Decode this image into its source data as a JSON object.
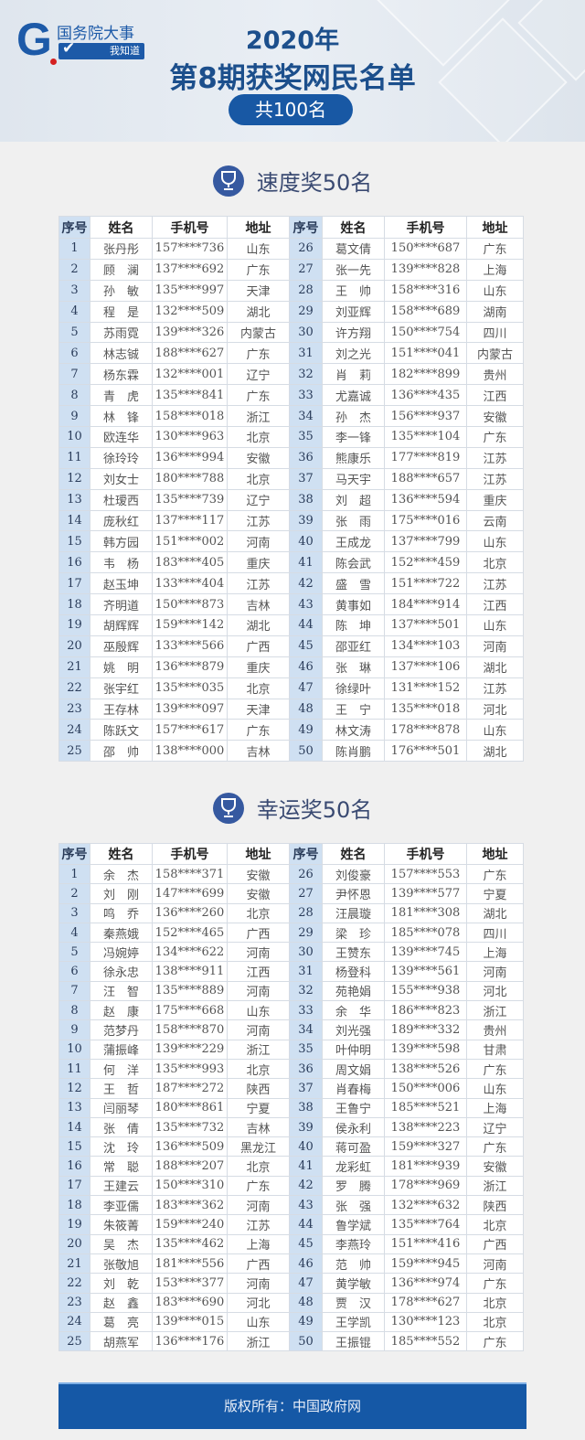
{
  "header": {
    "logo_text": "国务院大事",
    "logo_sub": "我知道",
    "logo_letter": "G",
    "year": "2020年",
    "title": "第8期获奖网民名单",
    "total": "共100名"
  },
  "colors": {
    "primary": "#1558a6",
    "title": "#1c4f8c",
    "index_cell": "#cfe0f2"
  },
  "columns": [
    "序号",
    "姓名",
    "手机号",
    "地址"
  ],
  "speed_award": {
    "title": "速度奖50名",
    "icon": "trophy-icon",
    "rows": [
      [
        "1",
        "张丹彤",
        "157****736",
        "山东"
      ],
      [
        "2",
        "顾　澜",
        "137****692",
        "广东"
      ],
      [
        "3",
        "孙　敏",
        "135****997",
        "天津"
      ],
      [
        "4",
        "程　是",
        "132****509",
        "湖北"
      ],
      [
        "5",
        "苏雨霓",
        "139****326",
        "内蒙古"
      ],
      [
        "6",
        "林志铖",
        "188****627",
        "广东"
      ],
      [
        "7",
        "杨东霖",
        "132****001",
        "辽宁"
      ],
      [
        "8",
        "青　虎",
        "135****841",
        "广东"
      ],
      [
        "9",
        "林　锋",
        "158****018",
        "浙江"
      ],
      [
        "10",
        "欧连华",
        "130****963",
        "北京"
      ],
      [
        "11",
        "徐玲玲",
        "136****994",
        "安徽"
      ],
      [
        "12",
        "刘女士",
        "180****788",
        "北京"
      ],
      [
        "13",
        "杜瑷西",
        "135****739",
        "辽宁"
      ],
      [
        "14",
        "庞秋红",
        "137****117",
        "江苏"
      ],
      [
        "15",
        "韩方园",
        "151****002",
        "河南"
      ],
      [
        "16",
        "韦　杨",
        "183****405",
        "重庆"
      ],
      [
        "17",
        "赵玉坤",
        "133****404",
        "江苏"
      ],
      [
        "18",
        "齐明道",
        "150****873",
        "吉林"
      ],
      [
        "19",
        "胡辉辉",
        "159****142",
        "湖北"
      ],
      [
        "20",
        "巫殷辉",
        "133****566",
        "广西"
      ],
      [
        "21",
        "姚　明",
        "136****879",
        "重庆"
      ],
      [
        "22",
        "张宇红",
        "135****035",
        "北京"
      ],
      [
        "23",
        "王存林",
        "139****097",
        "天津"
      ],
      [
        "24",
        "陈跃文",
        "157****617",
        "广东"
      ],
      [
        "25",
        "邵　帅",
        "138****000",
        "吉林"
      ],
      [
        "26",
        "葛文倩",
        "150****687",
        "广东"
      ],
      [
        "27",
        "张一先",
        "139****828",
        "上海"
      ],
      [
        "28",
        "王　帅",
        "158****316",
        "山东"
      ],
      [
        "29",
        "刘亚辉",
        "158****689",
        "湖南"
      ],
      [
        "30",
        "许方翔",
        "150****754",
        "四川"
      ],
      [
        "31",
        "刘之光",
        "151****041",
        "内蒙古"
      ],
      [
        "32",
        "肖　莉",
        "182****899",
        "贵州"
      ],
      [
        "33",
        "尤嘉诚",
        "136****435",
        "江西"
      ],
      [
        "34",
        "孙　杰",
        "156****937",
        "安徽"
      ],
      [
        "35",
        "李一锋",
        "135****104",
        "广东"
      ],
      [
        "36",
        "熊康乐",
        "177****819",
        "江苏"
      ],
      [
        "37",
        "马天宇",
        "188****657",
        "江苏"
      ],
      [
        "38",
        "刘　超",
        "136****594",
        "重庆"
      ],
      [
        "39",
        "张　雨",
        "175****016",
        "云南"
      ],
      [
        "40",
        "王成龙",
        "137****799",
        "山东"
      ],
      [
        "41",
        "陈会武",
        "152****459",
        "北京"
      ],
      [
        "42",
        "盛　雪",
        "151****722",
        "江苏"
      ],
      [
        "43",
        "黄事如",
        "184****914",
        "江西"
      ],
      [
        "44",
        "陈　坤",
        "137****501",
        "山东"
      ],
      [
        "45",
        "邵亚红",
        "134****103",
        "河南"
      ],
      [
        "46",
        "张　琳",
        "137****106",
        "湖北"
      ],
      [
        "47",
        "徐绿叶",
        "131****152",
        "江苏"
      ],
      [
        "48",
        "王　宁",
        "135****018",
        "河北"
      ],
      [
        "49",
        "林文涛",
        "178****878",
        "山东"
      ],
      [
        "50",
        "陈肖鹏",
        "176****501",
        "湖北"
      ]
    ]
  },
  "lucky_award": {
    "title": "幸运奖50名",
    "icon": "trophy-icon",
    "rows": [
      [
        "1",
        "余　杰",
        "158****371",
        "安徽"
      ],
      [
        "2",
        "刘　刚",
        "147****699",
        "安徽"
      ],
      [
        "3",
        "鸣　乔",
        "136****260",
        "北京"
      ],
      [
        "4",
        "秦燕娥",
        "152****465",
        "广西"
      ],
      [
        "5",
        "冯婉婷",
        "134****622",
        "河南"
      ],
      [
        "6",
        "徐永忠",
        "138****911",
        "江西"
      ],
      [
        "7",
        "汪　智",
        "135****889",
        "河南"
      ],
      [
        "8",
        "赵　康",
        "175****668",
        "山东"
      ],
      [
        "9",
        "范梦丹",
        "158****870",
        "河南"
      ],
      [
        "10",
        "蒲振峰",
        "139****229",
        "浙江"
      ],
      [
        "11",
        "何　洋",
        "135****993",
        "北京"
      ],
      [
        "12",
        "王　哲",
        "187****272",
        "陕西"
      ],
      [
        "13",
        "闫丽琴",
        "180****861",
        "宁夏"
      ],
      [
        "14",
        "张　倩",
        "135****732",
        "吉林"
      ],
      [
        "15",
        "沈　玲",
        "136****509",
        "黑龙江"
      ],
      [
        "16",
        "常　聪",
        "188****207",
        "北京"
      ],
      [
        "17",
        "王建云",
        "150****310",
        "广东"
      ],
      [
        "18",
        "李亚儒",
        "183****362",
        "河南"
      ],
      [
        "19",
        "朱筱菁",
        "159****240",
        "江苏"
      ],
      [
        "20",
        "吴　杰",
        "135****462",
        "上海"
      ],
      [
        "21",
        "张敬旭",
        "181****556",
        "广西"
      ],
      [
        "22",
        "刘　乾",
        "153****377",
        "河南"
      ],
      [
        "23",
        "赵　鑫",
        "183****690",
        "河北"
      ],
      [
        "24",
        "葛　亮",
        "139****015",
        "山东"
      ],
      [
        "25",
        "胡燕军",
        "136****176",
        "浙江"
      ],
      [
        "26",
        "刘俊豪",
        "157****553",
        "广东"
      ],
      [
        "27",
        "尹怀恩",
        "139****577",
        "宁夏"
      ],
      [
        "28",
        "汪晨璇",
        "181****308",
        "湖北"
      ],
      [
        "29",
        "梁　珍",
        "185****078",
        "四川"
      ],
      [
        "30",
        "王赞东",
        "139****745",
        "上海"
      ],
      [
        "31",
        "杨登科",
        "139****561",
        "河南"
      ],
      [
        "32",
        "苑艳娟",
        "155****938",
        "河北"
      ],
      [
        "33",
        "余　华",
        "186****823",
        "浙江"
      ],
      [
        "34",
        "刘光强",
        "189****332",
        "贵州"
      ],
      [
        "35",
        "叶仲明",
        "139****598",
        "甘肃"
      ],
      [
        "36",
        "周文娟",
        "138****526",
        "广东"
      ],
      [
        "37",
        "肖春梅",
        "150****006",
        "山东"
      ],
      [
        "38",
        "王鲁宁",
        "185****521",
        "上海"
      ],
      [
        "39",
        "侯永利",
        "138****223",
        "辽宁"
      ],
      [
        "40",
        "蒋可盈",
        "159****327",
        "广东"
      ],
      [
        "41",
        "龙彩虹",
        "181****939",
        "安徽"
      ],
      [
        "42",
        "罗　腾",
        "178****969",
        "浙江"
      ],
      [
        "43",
        "张　强",
        "132****632",
        "陕西"
      ],
      [
        "44",
        "鲁学斌",
        "135****764",
        "北京"
      ],
      [
        "45",
        "李燕玲",
        "151****416",
        "广西"
      ],
      [
        "46",
        "范　帅",
        "159****945",
        "河南"
      ],
      [
        "47",
        "黄学敏",
        "136****974",
        "广东"
      ],
      [
        "48",
        "贾　汉",
        "178****627",
        "北京"
      ],
      [
        "49",
        "王学凯",
        "130****123",
        "北京"
      ],
      [
        "50",
        "王振锟",
        "185****552",
        "广东"
      ]
    ]
  },
  "footer": {
    "text": "版权所有：中国政府网"
  }
}
